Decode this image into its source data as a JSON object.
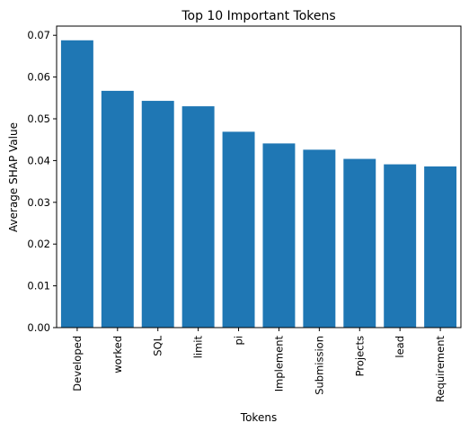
{
  "chart_data": {
    "type": "bar",
    "title": "Top 10 Important Tokens",
    "xlabel": "Tokens",
    "ylabel": "Average SHAP Value",
    "categories": [
      "Developed",
      "worked",
      "SQL",
      "limit",
      "pi",
      "Implement",
      "Submission",
      "Projects",
      "lead",
      "Requirement"
    ],
    "values": [
      0.0688,
      0.0567,
      0.0543,
      0.053,
      0.0469,
      0.0441,
      0.0426,
      0.0404,
      0.0391,
      0.0386
    ],
    "ylim": [
      0,
      0.0722
    ],
    "yticks": [
      "0.00",
      "0.01",
      "0.02",
      "0.03",
      "0.04",
      "0.05",
      "0.06",
      "0.07"
    ],
    "ytick_values": [
      0,
      0.01,
      0.02,
      0.03,
      0.04,
      0.05,
      0.06,
      0.07
    ],
    "bar_color": "#1f77b4",
    "grid": false,
    "legend": "none"
  }
}
